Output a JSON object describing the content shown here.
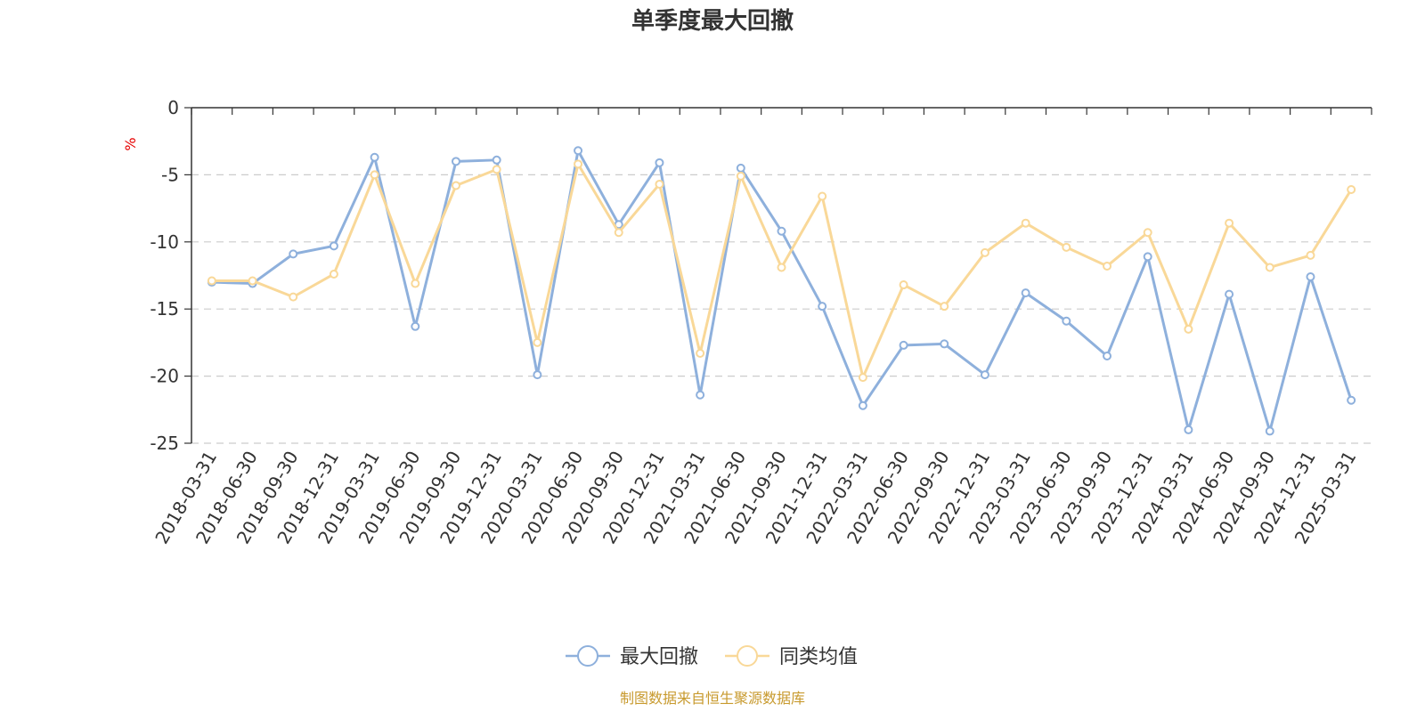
{
  "chart_data": {
    "type": "line",
    "title": "单季度最大回撤",
    "ylabel": "%",
    "ylim": [
      -25,
      0
    ],
    "yticks": [
      0,
      -5,
      -10,
      -15,
      -20,
      -25
    ],
    "grid": true,
    "legend_position": "bottom-center",
    "x": [
      "2018-03-31",
      "2018-06-30",
      "2018-09-30",
      "2018-12-31",
      "2019-03-31",
      "2019-06-30",
      "2019-09-30",
      "2019-12-31",
      "2020-03-31",
      "2020-06-30",
      "2020-09-30",
      "2020-12-31",
      "2021-03-31",
      "2021-06-30",
      "2021-09-30",
      "2021-12-31",
      "2022-03-31",
      "2022-06-30",
      "2022-09-30",
      "2022-12-31",
      "2023-03-31",
      "2023-06-30",
      "2023-09-30",
      "2023-12-31",
      "2024-03-31",
      "2024-06-30",
      "2024-09-30",
      "2024-12-31",
      "2025-03-31"
    ],
    "series": [
      {
        "name": "最大回撤",
        "color": "#8eb0dc",
        "values": [
          -13.0,
          -13.1,
          -10.9,
          -10.3,
          -3.7,
          -16.3,
          -4.0,
          -3.9,
          -19.9,
          -3.2,
          -8.7,
          -4.1,
          -21.4,
          -4.5,
          -9.2,
          -14.8,
          -22.2,
          -17.7,
          -17.6,
          -19.9,
          -13.8,
          -15.9,
          -18.5,
          -11.1,
          -24.0,
          -13.9,
          -24.1,
          -12.6,
          -21.8
        ]
      },
      {
        "name": "同类均值",
        "color": "#f9d898",
        "values": [
          -12.9,
          -12.9,
          -14.1,
          -12.4,
          -5.0,
          -13.1,
          -5.8,
          -4.6,
          -17.5,
          -4.2,
          -9.3,
          -5.7,
          -18.3,
          -5.1,
          -11.9,
          -6.6,
          -20.1,
          -13.2,
          -14.8,
          -10.8,
          -8.6,
          -10.4,
          -11.8,
          -9.3,
          -16.5,
          -8.6,
          -11.9,
          -11.0,
          -6.1
        ]
      }
    ]
  },
  "footer": {
    "source": "制图数据来自恒生聚源数据库"
  }
}
